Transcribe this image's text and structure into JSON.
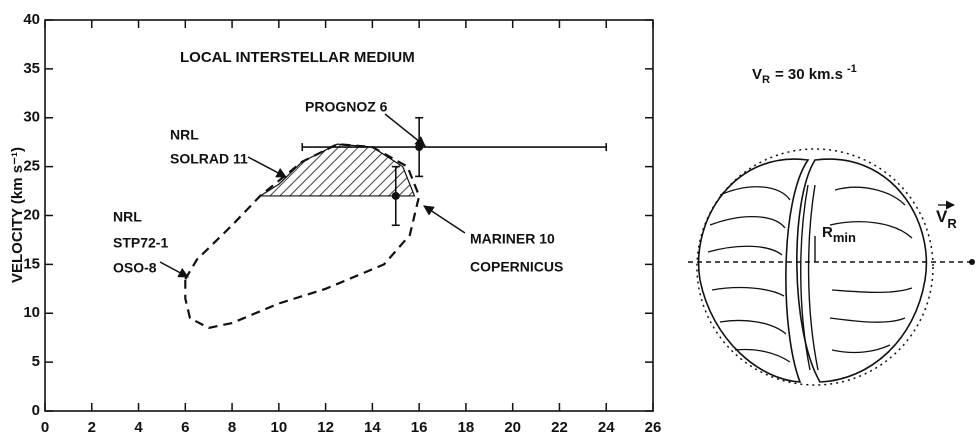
{
  "chart_data": {
    "type": "scatter",
    "title": "LOCAL INTERSTELLAR MEDIUM",
    "y_label": "VELOCITY (km s⁻¹)",
    "xlim": [
      0,
      26
    ],
    "xticks": [
      0,
      2,
      4,
      6,
      8,
      10,
      12,
      14,
      16,
      18,
      20,
      22,
      24,
      26
    ],
    "ylim": [
      0,
      40
    ],
    "yticks": [
      0,
      5,
      10,
      15,
      20,
      25,
      30,
      35,
      40
    ],
    "points": [
      {
        "label": "PROGNOZ 6",
        "x": 16,
        "y": 27,
        "xrange": [
          11,
          24
        ],
        "yrange": [
          24,
          30
        ]
      },
      {
        "label": "MARINER 10",
        "x": 15,
        "y": 22,
        "yrange": [
          19,
          25
        ]
      }
    ],
    "regions": [
      {
        "style": "dashed",
        "x": [
          6.0,
          6.5,
          8,
          9.2,
          11,
          12.5,
          14,
          15.5,
          16,
          15.6,
          14.5,
          12,
          10,
          8,
          7,
          6.2,
          6.0
        ],
        "y": [
          13.5,
          15.5,
          19,
          22,
          25.5,
          27.3,
          27,
          25,
          22,
          18,
          15,
          12.5,
          11,
          9,
          8.5,
          9.5,
          11.5
        ]
      },
      {
        "style": "hatched",
        "x": [
          9.2,
          10,
          11,
          12.5,
          14,
          15.3,
          15.8
        ],
        "y": [
          22,
          23.2,
          25.5,
          27.3,
          27,
          25,
          22
        ]
      }
    ],
    "annotations": [
      {
        "lines": [
          "NRL",
          "SOLRAD 11"
        ]
      },
      {
        "lines": [
          "NRL",
          "STP72-1",
          "OSO-8"
        ]
      },
      {
        "lines": [
          "COPERNICUS"
        ]
      }
    ]
  },
  "diagram": {
    "speed": {
      "symbol": "V",
      "subscript": "R",
      "text": "= 30 km.s",
      "superscript": "-1"
    },
    "radius": {
      "symbol": "R",
      "subscript": "min"
    },
    "velocity": {
      "symbol": "V",
      "subscript": "R"
    }
  }
}
